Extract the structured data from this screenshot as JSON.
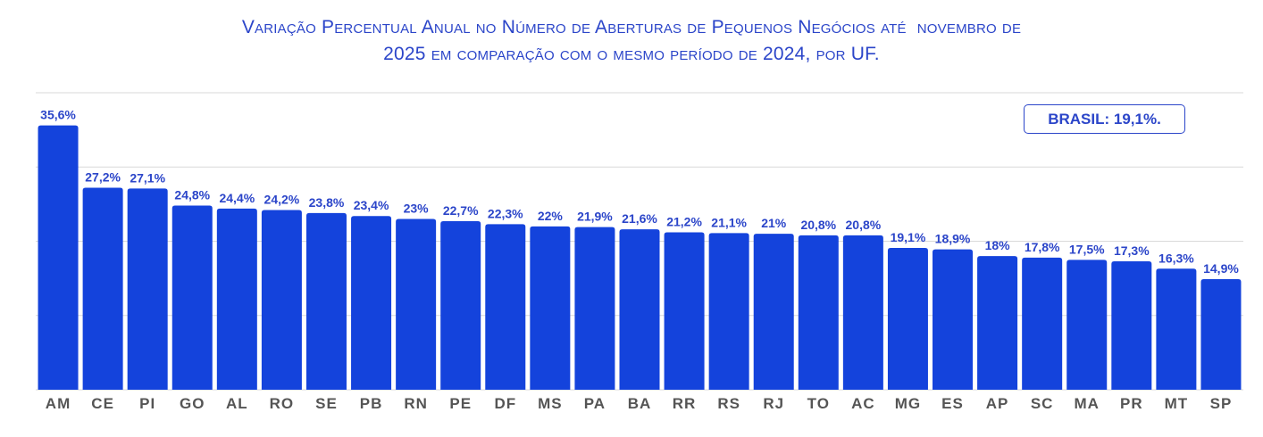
{
  "chart_data": {
    "type": "bar",
    "title": "Variação Percentual Anual no Número de Aberturas de Pequenos Negócios até  novembro de",
    "subtitle": "2025 em comparação com o mesmo período de 2024, por UF.",
    "categories": [
      "AM",
      "CE",
      "PI",
      "GO",
      "AL",
      "RO",
      "SE",
      "PB",
      "RN",
      "PE",
      "DF",
      "MS",
      "PA",
      "BA",
      "RR",
      "RS",
      "RJ",
      "TO",
      "AC",
      "MG",
      "ES",
      "AP",
      "SC",
      "MA",
      "PR",
      "MT",
      "SP"
    ],
    "values": [
      35.6,
      27.2,
      27.1,
      24.8,
      24.4,
      24.2,
      23.8,
      23.4,
      23,
      22.7,
      22.3,
      22,
      21.9,
      21.6,
      21.2,
      21.1,
      21,
      20.8,
      20.8,
      19.1,
      18.9,
      18,
      17.8,
      17.5,
      17.3,
      16.3,
      14.9
    ],
    "data_labels": [
      "35,6%",
      "27,2%",
      "27,1%",
      "24,8%",
      "24,4%",
      "24,2%",
      "23,8%",
      "23,4%",
      "23%",
      "22,7%",
      "22,3%",
      "22%",
      "21,9%",
      "21,6%",
      "21,2%",
      "21,1%",
      "21%",
      "20,8%",
      "20,8%",
      "19,1%",
      "18,9%",
      "18%",
      "17,8%",
      "17,5%",
      "17,3%",
      "16,3%",
      "14,9%"
    ],
    "xlabel": "",
    "ylabel": "",
    "ylim": [
      0,
      40
    ],
    "gridlines": [
      10,
      20,
      30,
      40
    ],
    "grid": true,
    "annotation": "BRASIL: 19,1%.",
    "colors": {
      "bar": "#1443dc",
      "label": "#2b45c9",
      "axis_text": "#555555",
      "grid": "#d9d9d9"
    }
  }
}
